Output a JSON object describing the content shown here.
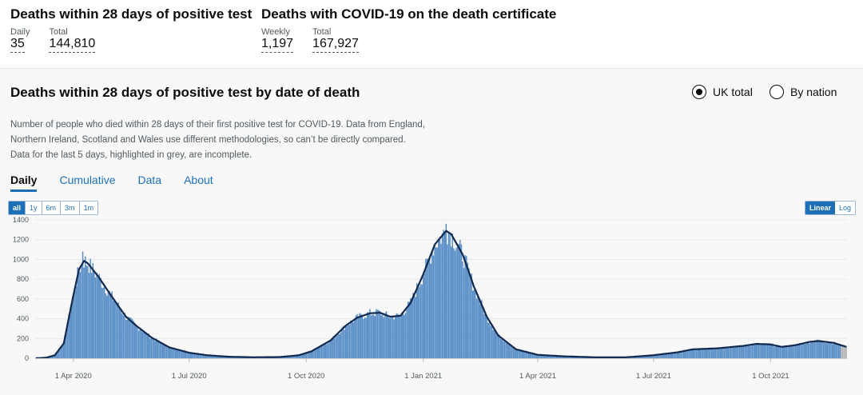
{
  "header": {
    "groups": [
      {
        "title": "Deaths within 28 days of positive test",
        "metrics": [
          {
            "label": "Daily",
            "value": "35"
          },
          {
            "label": "Total",
            "value": "144,810"
          }
        ]
      },
      {
        "title": "Deaths with COVID-19 on the death certificate",
        "metrics": [
          {
            "label": "Weekly",
            "value": "1,197"
          },
          {
            "label": "Total",
            "value": "167,927"
          }
        ]
      }
    ]
  },
  "panel": {
    "title": "Deaths within 28 days of positive test by date of death",
    "radios": [
      {
        "label": "UK total",
        "selected": true
      },
      {
        "label": "By nation",
        "selected": false
      }
    ],
    "description": "Number of people who died within 28 days of their first positive test for COVID-19. Data from England, Northern Ireland, Scotland and Wales use different methodologies, so can’t be directly compared. Data for the last 5 days, highlighted in grey, are incomplete.",
    "tabs": [
      "Daily",
      "Cumulative",
      "Data",
      "About"
    ],
    "active_tab": "Daily",
    "range_buttons": [
      "all",
      "1y",
      "6m",
      "3m",
      "1m"
    ],
    "active_range": "all",
    "scale_buttons": [
      "Linear",
      "Log"
    ],
    "active_scale": "Linear"
  },
  "colors": {
    "bar": "#5a8fc7",
    "line": "#12294f",
    "incomplete": "#b1b4b6",
    "accent": "#1d70b8"
  },
  "chart_data": {
    "type": "bar",
    "title": "Deaths within 28 days of positive test by date of death",
    "x_start": "2020-03-02",
    "x_end": "2021-11-30",
    "x_ticks": [
      {
        "date": "2020-04-01",
        "label": "1 Apr 2020"
      },
      {
        "date": "2020-07-01",
        "label": "1 Jul 2020"
      },
      {
        "date": "2020-10-01",
        "label": "1 Oct 2020"
      },
      {
        "date": "2021-01-01",
        "label": "1 Jan 2021"
      },
      {
        "date": "2021-04-01",
        "label": "1 Apr 2021"
      },
      {
        "date": "2021-07-01",
        "label": "1 Jul 2021"
      },
      {
        "date": "2021-10-01",
        "label": "1 Oct 2021"
      }
    ],
    "y_ticks": [
      0,
      200,
      400,
      600,
      800,
      1000,
      1200,
      1400
    ],
    "ylim": [
      0,
      1400
    ],
    "incomplete_days": 5,
    "series": [
      {
        "name": "Daily deaths",
        "kind": "bars"
      },
      {
        "name": "Rolling average",
        "kind": "line"
      }
    ],
    "anchors": [
      [
        "2020-03-02",
        0
      ],
      [
        "2020-03-10",
        5
      ],
      [
        "2020-03-17",
        30
      ],
      [
        "2020-03-24",
        150
      ],
      [
        "2020-03-31",
        600
      ],
      [
        "2020-04-05",
        900
      ],
      [
        "2020-04-09",
        985
      ],
      [
        "2020-04-12",
        960
      ],
      [
        "2020-04-20",
        830
      ],
      [
        "2020-05-01",
        620
      ],
      [
        "2020-05-12",
        420
      ],
      [
        "2020-05-20",
        330
      ],
      [
        "2020-06-01",
        210
      ],
      [
        "2020-06-15",
        110
      ],
      [
        "2020-07-01",
        55
      ],
      [
        "2020-07-15",
        30
      ],
      [
        "2020-08-01",
        15
      ],
      [
        "2020-08-20",
        10
      ],
      [
        "2020-09-10",
        12
      ],
      [
        "2020-09-25",
        30
      ],
      [
        "2020-10-05",
        70
      ],
      [
        "2020-10-20",
        180
      ],
      [
        "2020-11-01",
        330
      ],
      [
        "2020-11-10",
        410
      ],
      [
        "2020-11-20",
        455
      ],
      [
        "2020-11-28",
        460
      ],
      [
        "2020-12-06",
        420
      ],
      [
        "2020-12-14",
        430
      ],
      [
        "2020-12-22",
        560
      ],
      [
        "2021-01-01",
        850
      ],
      [
        "2021-01-10",
        1150
      ],
      [
        "2021-01-19",
        1290
      ],
      [
        "2021-01-23",
        1255
      ],
      [
        "2021-02-01",
        1050
      ],
      [
        "2021-02-10",
        720
      ],
      [
        "2021-02-20",
        420
      ],
      [
        "2021-03-01",
        230
      ],
      [
        "2021-03-15",
        90
      ],
      [
        "2021-04-01",
        35
      ],
      [
        "2021-04-20",
        20
      ],
      [
        "2021-05-15",
        10
      ],
      [
        "2021-06-10",
        10
      ],
      [
        "2021-07-01",
        30
      ],
      [
        "2021-07-20",
        60
      ],
      [
        "2021-08-01",
        90
      ],
      [
        "2021-08-20",
        100
      ],
      [
        "2021-09-10",
        125
      ],
      [
        "2021-09-20",
        145
      ],
      [
        "2021-10-01",
        140
      ],
      [
        "2021-10-10",
        115
      ],
      [
        "2021-10-20",
        130
      ],
      [
        "2021-11-01",
        165
      ],
      [
        "2021-11-08",
        175
      ],
      [
        "2021-11-20",
        155
      ],
      [
        "2021-11-30",
        115
      ]
    ]
  }
}
